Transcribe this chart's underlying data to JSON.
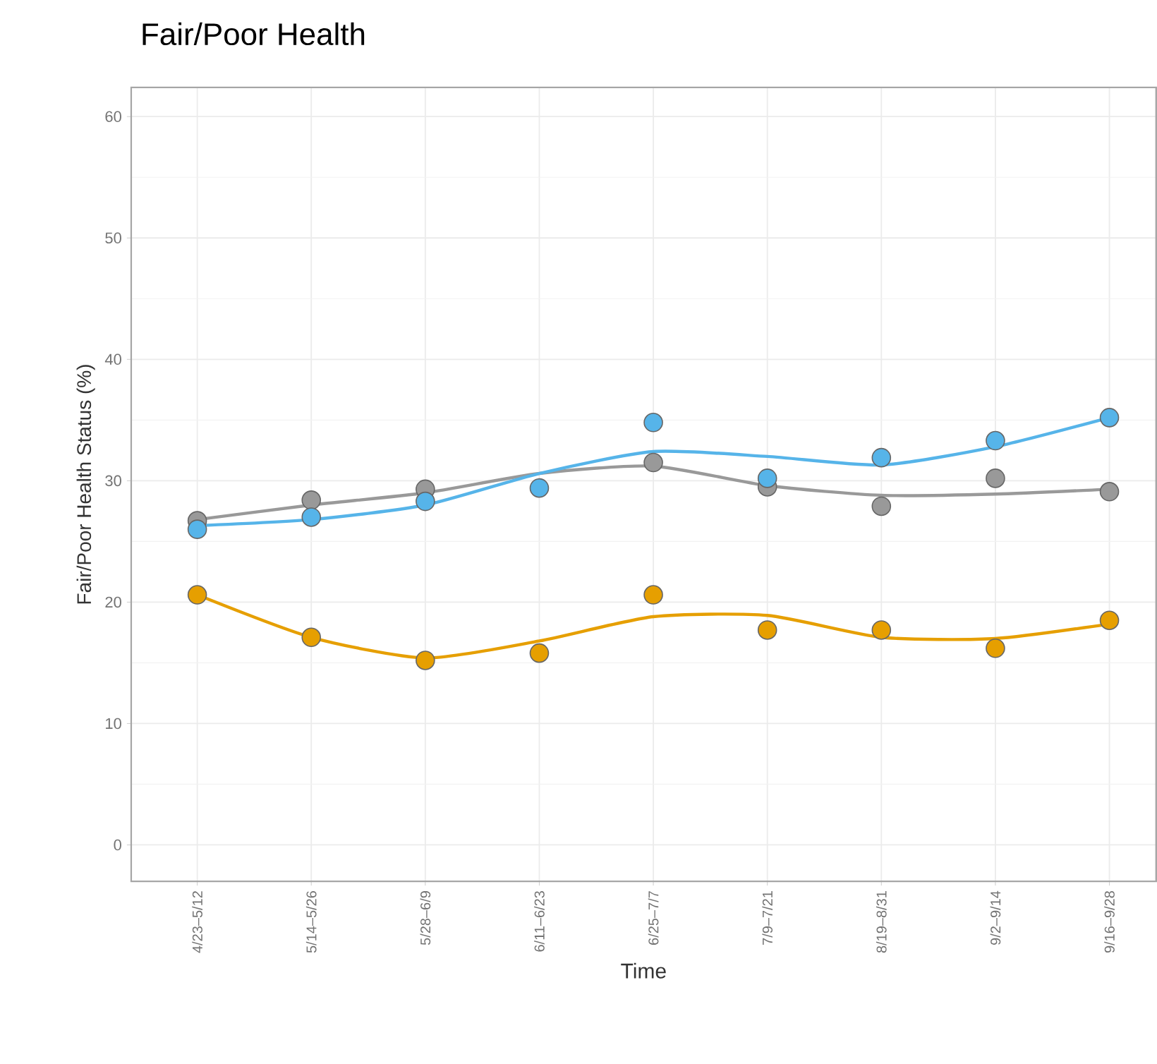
{
  "chart_data": {
    "type": "scatter",
    "title": "Fair/Poor Health",
    "xlabel": "Time",
    "ylabel": "Fair/Poor Health Status (%)",
    "categories": [
      "4/23–5/12",
      "5/14–5/26",
      "5/28–6/9",
      "6/11–6/23",
      "6/25–7/7",
      "7/9–7/21",
      "8/19–8/31",
      "9/2–9/14",
      "9/16–9/28"
    ],
    "ylim": [
      -3,
      62.4
    ],
    "yticks": [
      0,
      10,
      20,
      30,
      40,
      50,
      60
    ],
    "grid": true,
    "series": [
      {
        "type": "line",
        "marker": "none",
        "color": "#999999",
        "values": [
          26.8,
          28.0,
          29.0,
          30.6,
          31.2,
          29.6,
          28.8,
          28.9,
          29.3
        ]
      },
      {
        "type": "line",
        "marker": "none",
        "color": "#56b4e9",
        "values": [
          26.3,
          26.8,
          28.0,
          30.6,
          32.4,
          32.0,
          31.3,
          32.8,
          35.2
        ]
      },
      {
        "type": "line",
        "marker": "none",
        "color": "#e69f00",
        "values": [
          20.6,
          17.1,
          15.4,
          16.8,
          18.8,
          18.9,
          17.1,
          17.0,
          18.2
        ]
      },
      {
        "marker": "circle",
        "color": "#999999",
        "values": [
          26.7,
          28.4,
          29.3,
          null,
          31.5,
          29.5,
          27.9,
          30.2,
          29.1
        ]
      },
      {
        "marker": "circle",
        "color": "#56b4e9",
        "values": [
          26.0,
          27.0,
          28.3,
          29.4,
          34.8,
          30.2,
          31.9,
          33.3,
          35.2
        ]
      },
      {
        "marker": "circle",
        "color": "#e69f00",
        "values": [
          20.6,
          17.1,
          15.2,
          15.8,
          20.6,
          17.7,
          17.7,
          16.2,
          18.5
        ]
      }
    ]
  }
}
